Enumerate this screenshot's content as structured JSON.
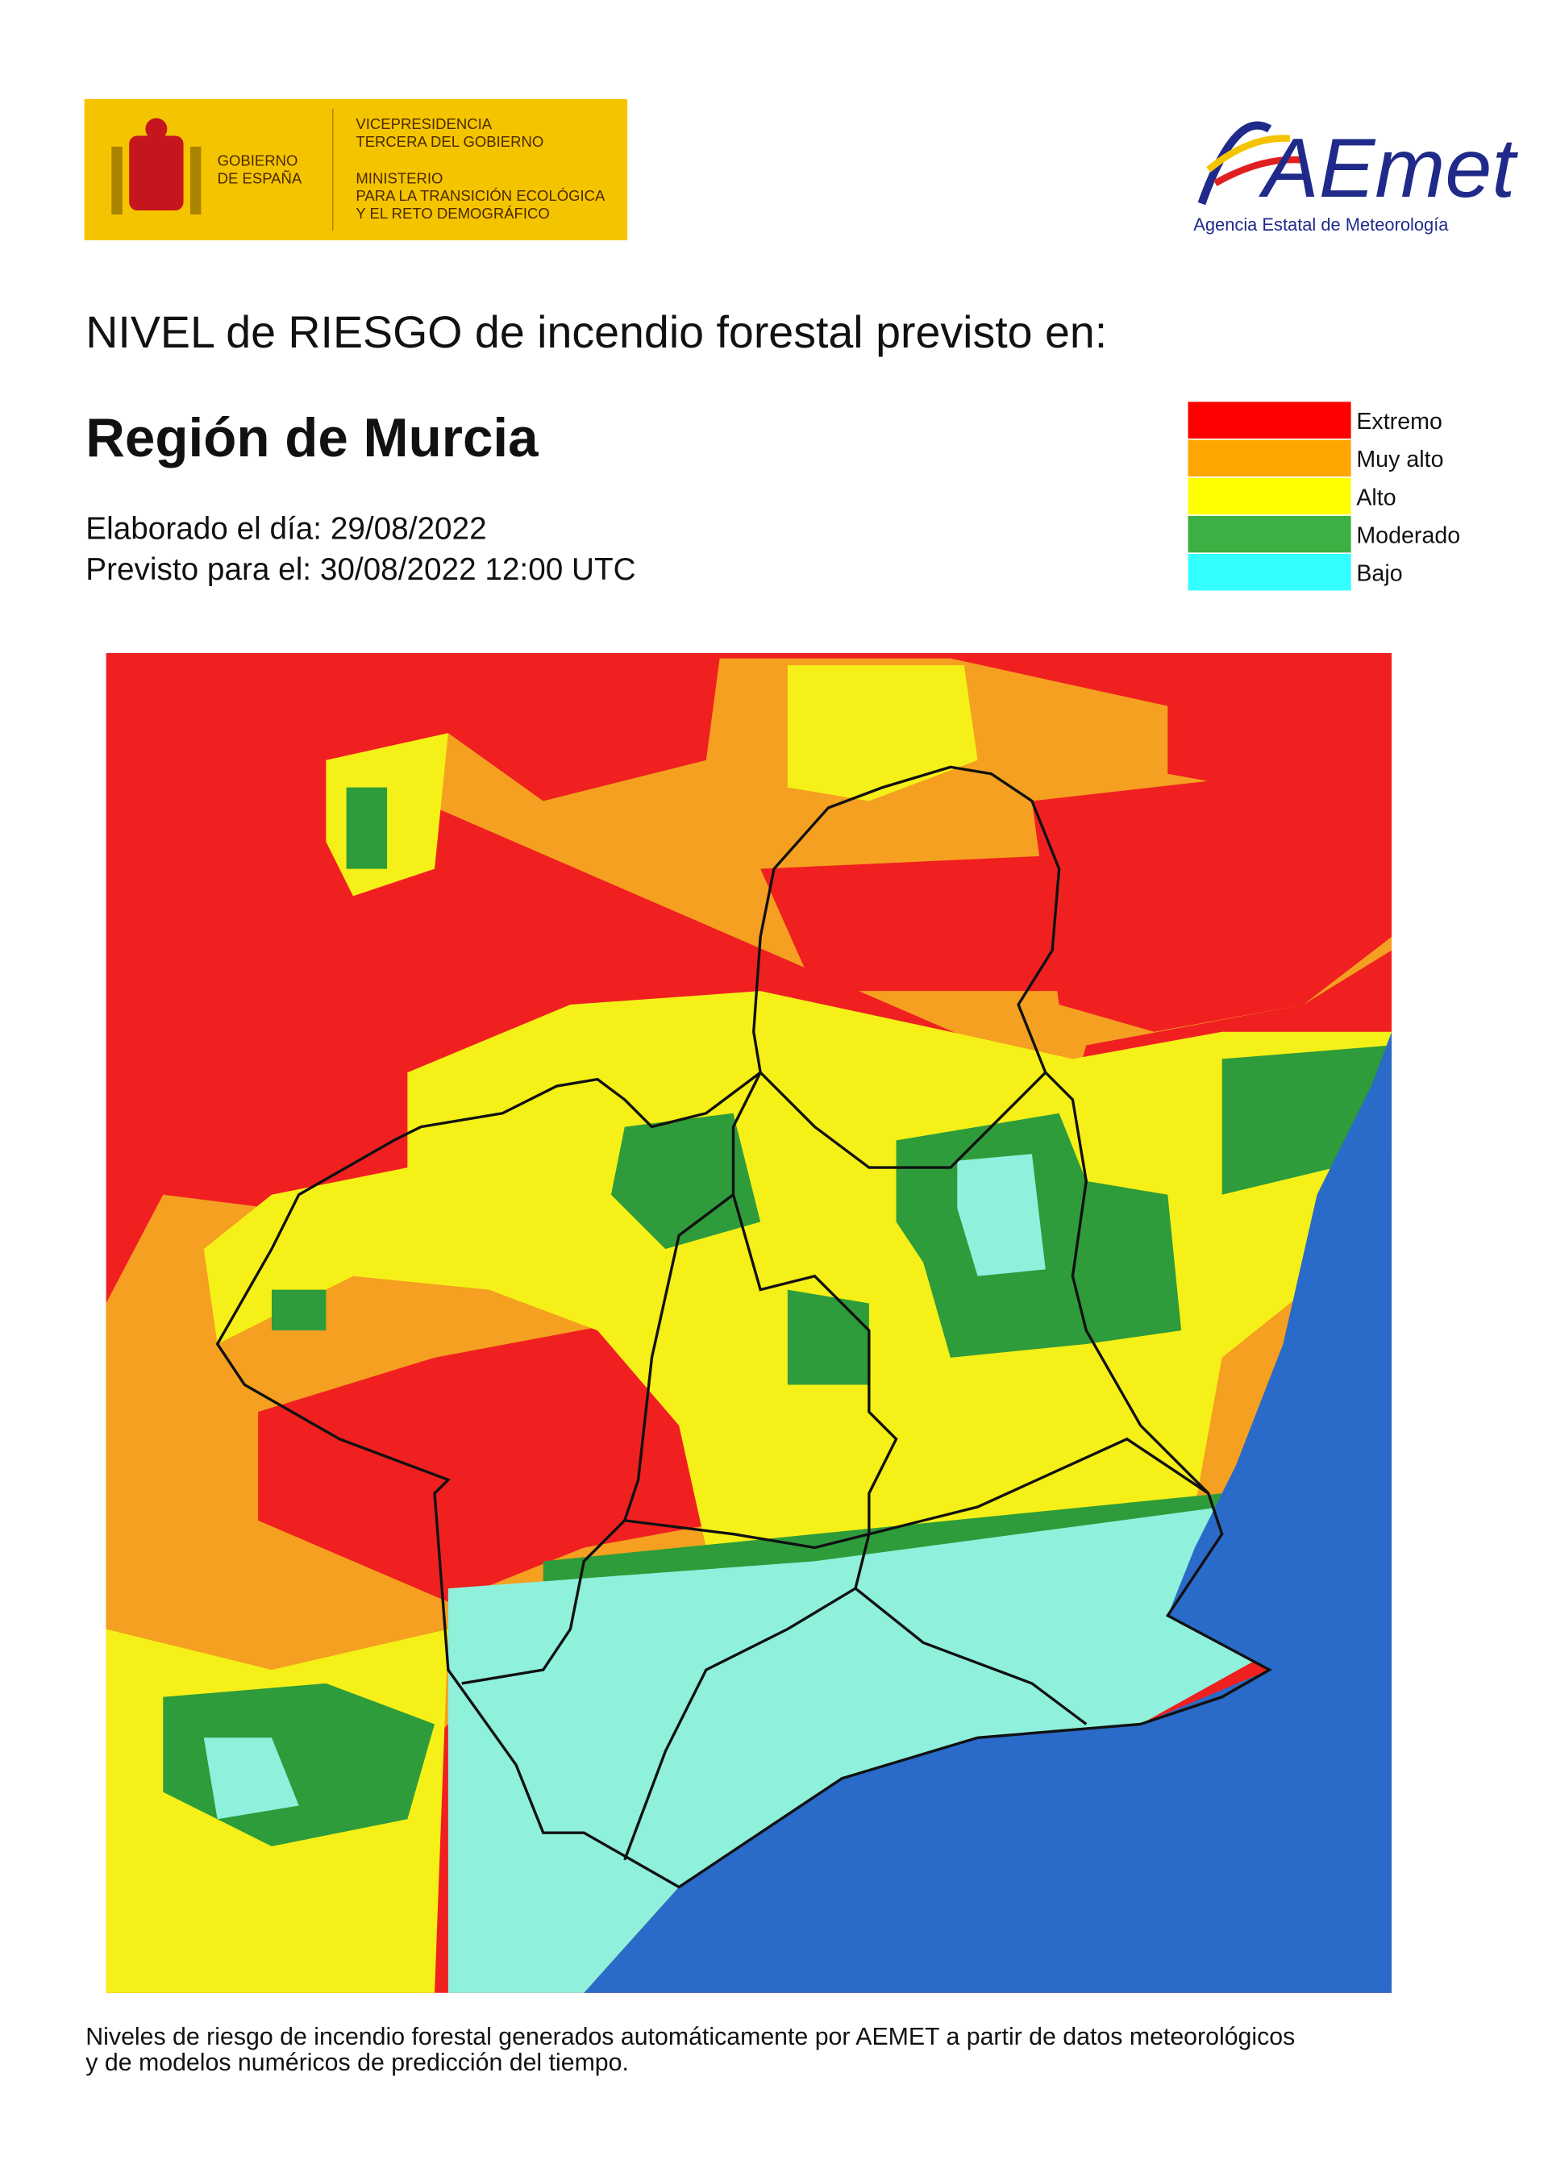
{
  "header": {
    "government_logo": {
      "name_lines": [
        "GOBIERNO",
        "DE ESPAÑA"
      ],
      "ministry_lines": [
        "VICEPRESIDENCIA",
        "TERCERA DEL GOBIERNO",
        "MINISTERIO",
        "PARA LA TRANSICIÓN ECOLÓGICA",
        "Y EL RETO DEMOGRÁFICO"
      ]
    },
    "agency_logo": {
      "wordmark": "AEmet",
      "subtitle": "Agencia Estatal de Meteorología"
    }
  },
  "title": "NIVEL de RIESGO de incendio forestal previsto en:",
  "region": "Región de Murcia",
  "issued": "Elaborado el día: 29/08/2022",
  "valid": "Previsto para el: 30/08/2022 12:00 UTC",
  "legend": [
    {
      "label": "Extremo",
      "color": "#ff0000"
    },
    {
      "label": "Muy alto",
      "color": "#ffa500"
    },
    {
      "label": "Alto",
      "color": "#ffff00"
    },
    {
      "label": "Moderado",
      "color": "#3cb043"
    },
    {
      "label": "Bajo",
      "color": "#33ffff"
    }
  ],
  "footer": [
    "Niveles de riesgo de incendio forestal generados automáticamente por AEMET a partir de datos meteorológicos",
    "y de modelos numéricos de predicción del tiempo."
  ]
}
